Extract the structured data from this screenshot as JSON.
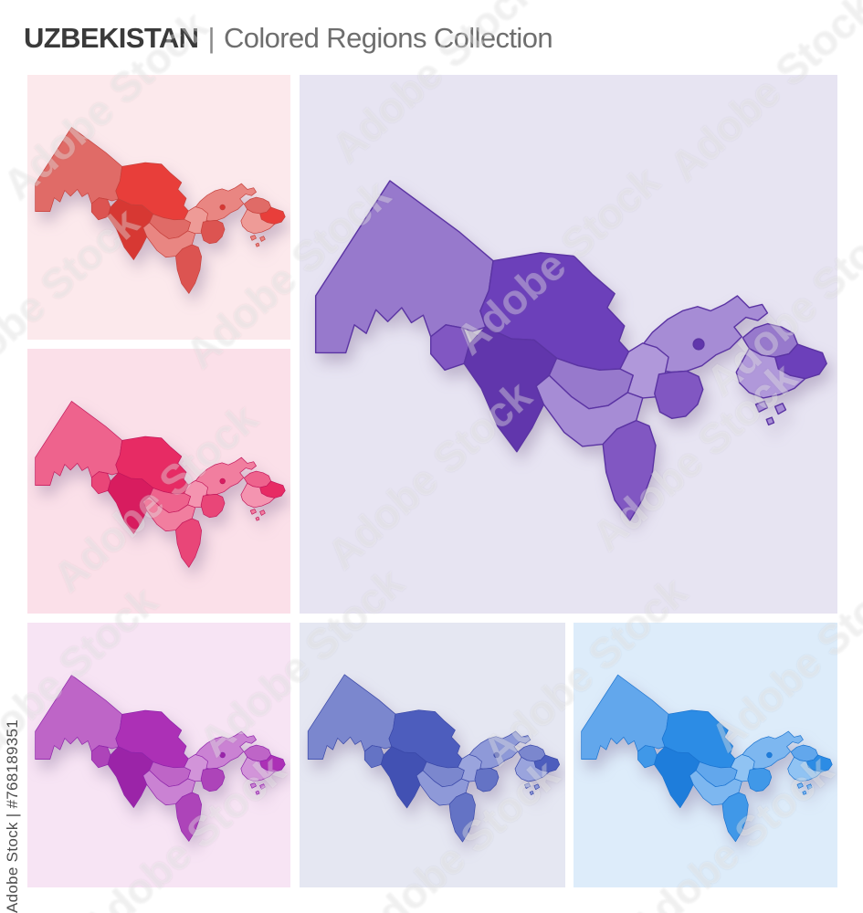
{
  "header": {
    "country": "UZBEKISTAN",
    "separator": "|",
    "subtitle": "Colored Regions Collection"
  },
  "watermark": {
    "diagonal_text": "Adobe Stock",
    "credit_text": "Adobe Stock | #768189351"
  },
  "regions": [
    {
      "key": "karakalpakstan",
      "shade": "mid"
    },
    {
      "key": "navoiy",
      "shade": "bright"
    },
    {
      "key": "tashkent",
      "shade": "midLight"
    },
    {
      "key": "jizzakh",
      "shade": "light"
    },
    {
      "key": "sirdaryo",
      "shade": "deep"
    },
    {
      "key": "khorezm",
      "shade": "deep"
    },
    {
      "key": "bukhara",
      "shade": "darkest"
    },
    {
      "key": "samarkand",
      "shade": "mid"
    },
    {
      "key": "kashkadarya",
      "shade": "midLight"
    },
    {
      "key": "surkhandarya",
      "shade": "deep"
    },
    {
      "key": "namangan",
      "shade": "mid"
    },
    {
      "key": "andijan",
      "shade": "bright"
    },
    {
      "key": "fergana",
      "shade": "light"
    },
    {
      "key": "fergana-islets",
      "shade": "midLight"
    },
    {
      "key": "tashkent-city",
      "shade": "darkest"
    }
  ],
  "tiles": [
    {
      "id": "red",
      "label": "Red colored regions map",
      "colors": {
        "bg": "#fce9ec",
        "light": "#EE9B97",
        "midLight": "#E98682",
        "mid": "#E06B67",
        "deep": "#DC5451",
        "bright": "#E83E3A",
        "darkest": "#D73833",
        "border": "#C6403C"
      }
    },
    {
      "id": "purple",
      "label": "Purple colored regions map",
      "colors": {
        "bg": "#e7e4f2",
        "light": "#B098DA",
        "midLight": "#A68CD5",
        "mid": "#9779CC",
        "deep": "#8157C2",
        "bright": "#6C40BA",
        "darkest": "#6136AC",
        "border": "#5B34A3"
      }
    },
    {
      "id": "pink",
      "label": "Pink colored regions map",
      "colors": {
        "bg": "#fbe0e9",
        "light": "#F494B0",
        "midLight": "#F17E9F",
        "mid": "#EE638D",
        "deep": "#E94678",
        "bright": "#E72B64",
        "darkest": "#D81C5F",
        "border": "#C2185B"
      }
    },
    {
      "id": "magenta",
      "label": "Magenta colored regions map",
      "colors": {
        "bg": "#f7e4f4",
        "light": "#D294D9",
        "midLight": "#CA82D3",
        "mid": "#BE65C7",
        "deep": "#AD44B9",
        "bright": "#AC30B6",
        "darkest": "#9B24A8",
        "border": "#8E24AA"
      }
    },
    {
      "id": "indigo",
      "label": "Indigo colored regions map",
      "colors": {
        "bg": "#e5e7f2",
        "light": "#9AA4DD",
        "midLight": "#8E99D8",
        "mid": "#7B87CE",
        "deep": "#6473C5",
        "bright": "#4D5DBD",
        "darkest": "#4251B3",
        "border": "#3A48A8"
      }
    },
    {
      "id": "blue",
      "label": "Blue colored regions map",
      "colors": {
        "bg": "#ddecfa",
        "light": "#90C3F3",
        "midLight": "#7DB7F0",
        "mid": "#62A7EC",
        "deep": "#4098E8",
        "bright": "#2C8CE5",
        "darkest": "#1E7DDB",
        "border": "#1A73D0"
      }
    }
  ]
}
